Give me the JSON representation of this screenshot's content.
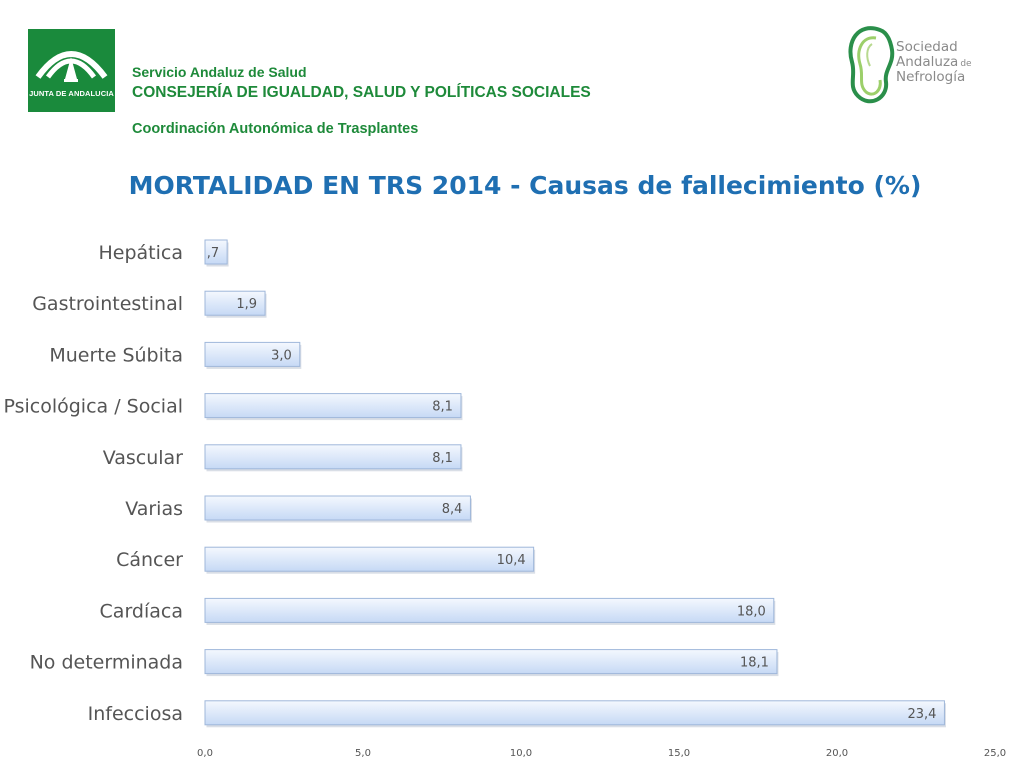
{
  "header": {
    "junta_logo_text": "JUNTA DE ANDALUCIA",
    "org_line_1": "Servicio Andaluz de Salud",
    "org_line_2": "CONSEJERÍA DE IGUALDAD, SALUD Y POLÍTICAS SOCIALES",
    "org_line_3": "Coordinación Autonómica de Trasplantes",
    "sociedad_line_1": "Sociedad",
    "sociedad_line_2": "Andaluza",
    "sociedad_line_2_suffix": "de",
    "sociedad_line_3": "Nefrología"
  },
  "colors": {
    "title": "#1f6fb2",
    "brand_green": "#1e8a3a",
    "bar_fill_top": "#f4f8fe",
    "bar_fill_bottom": "#c6d9f5",
    "bar_stroke": "#9fb7da",
    "text_gray": "#555555"
  },
  "chart_data": {
    "type": "bar",
    "orientation": "horizontal",
    "title": "MORTALIDAD EN TRS 2014 - Causas de fallecimiento (%)",
    "categories": [
      "Hepática",
      "Gastrointestinal",
      "Muerte Súbita",
      "Psicológica / Social",
      "Vascular",
      "Varias",
      "Cáncer",
      "Cardíaca",
      "No determinada",
      "Infecciosa"
    ],
    "values": [
      0.7,
      1.9,
      3.0,
      8.1,
      8.1,
      8.4,
      10.4,
      18.0,
      18.1,
      23.4
    ],
    "value_labels": [
      ",7",
      "1,9",
      "3,0",
      "8,1",
      "8,1",
      "8,4",
      "10,4",
      "18,0",
      "18,1",
      "23,4"
    ],
    "xlim": [
      0,
      25
    ],
    "xticks": [
      "0,0",
      "5,0",
      "10,0",
      "15,0",
      "20,0",
      "25,0"
    ],
    "xlabel": "",
    "ylabel": "",
    "grid": false,
    "legend": "none"
  }
}
